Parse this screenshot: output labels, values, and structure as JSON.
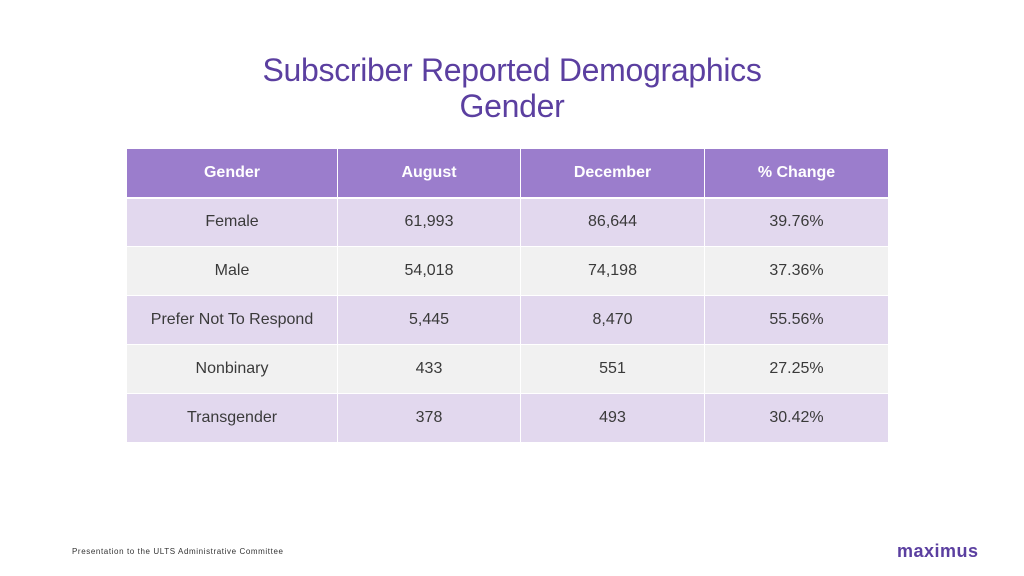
{
  "title": {
    "line1": "Subscriber Reported Demographics",
    "line2": "Gender"
  },
  "table": {
    "headers": [
      "Gender",
      "August",
      "December",
      "% Change"
    ],
    "rows": [
      [
        "Female",
        "61,993",
        "86,644",
        "39.76%"
      ],
      [
        "Male",
        "54,018",
        "74,198",
        "37.36%"
      ],
      [
        "Prefer Not To Respond",
        "5,445",
        "8,470",
        "55.56%"
      ],
      [
        "Nonbinary",
        "433",
        "551",
        "27.25%"
      ],
      [
        "Transgender",
        "378",
        "493",
        "30.42%"
      ]
    ]
  },
  "footer": {
    "text": "Presentation to the ULTS Administrative Committee",
    "logo": "maximus"
  },
  "colors": {
    "accent": "#5b3fa0",
    "header_bg": "#9b7dcc",
    "row_odd_bg": "#e2d8ee",
    "row_even_bg": "#f1f1f1"
  }
}
